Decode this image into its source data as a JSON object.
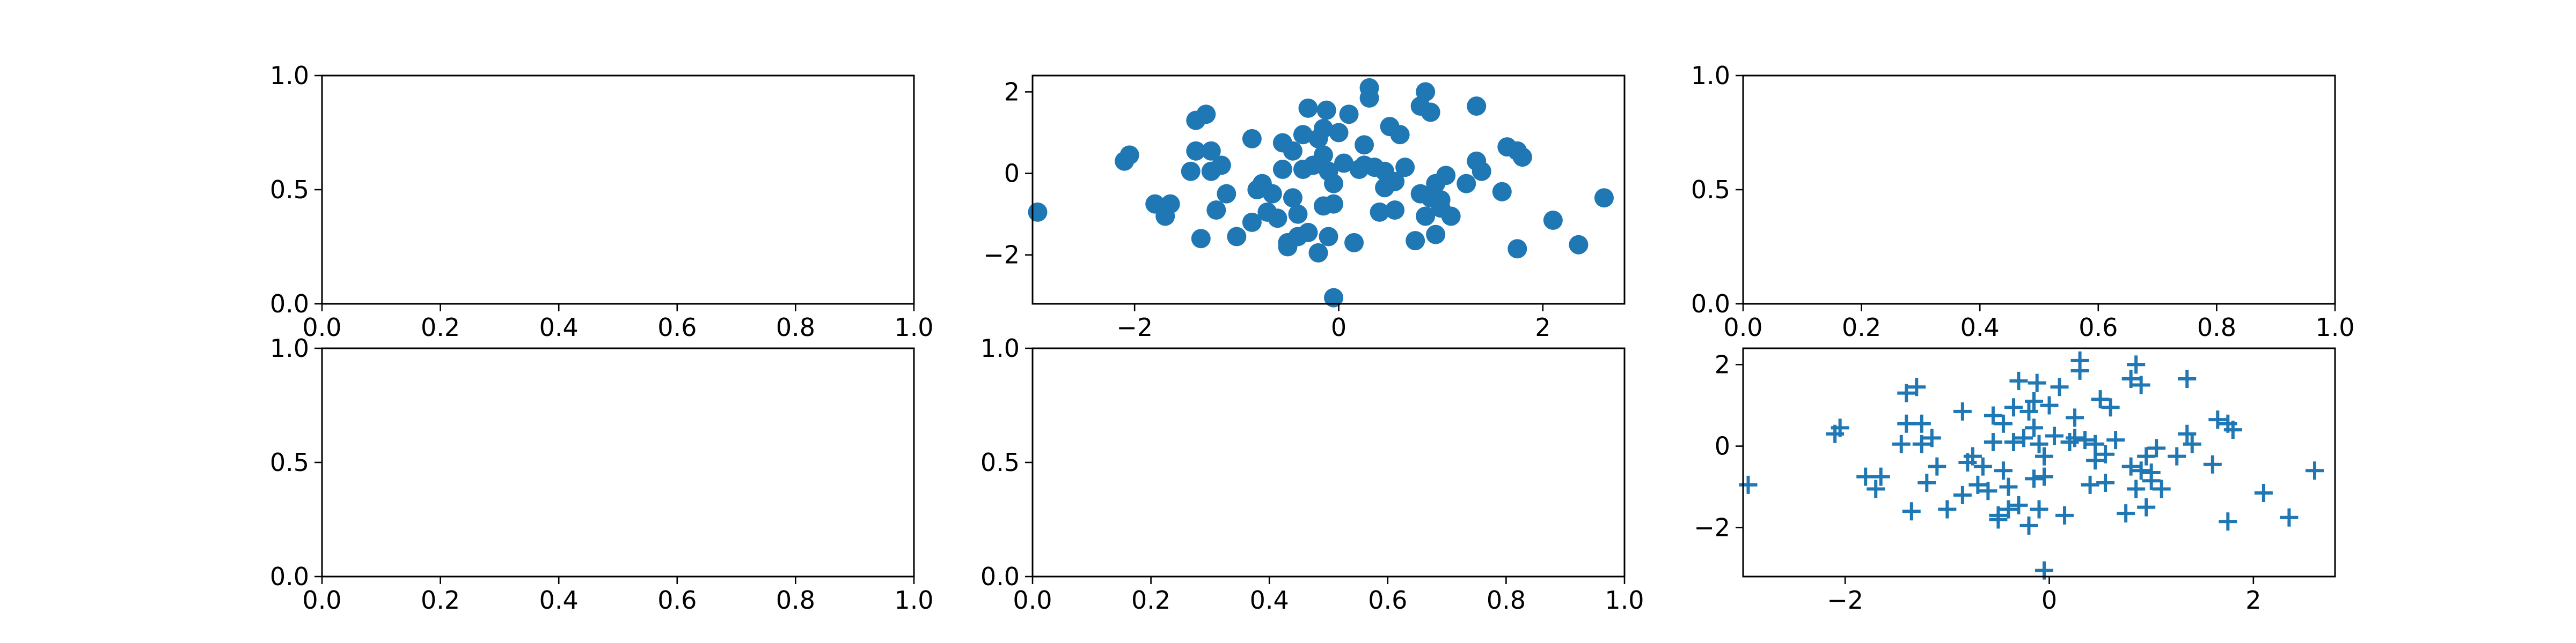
{
  "figure": {
    "background": "#ffffff",
    "accent": "#1f77b4"
  },
  "chart_data": [
    {
      "panel": "row1-col1",
      "type": "empty",
      "xlim": [
        0,
        1
      ],
      "ylim": [
        0,
        1
      ],
      "xticks": [
        0,
        0.2,
        0.4,
        0.6,
        0.8,
        1
      ],
      "yticks": [
        0,
        0.5,
        1
      ],
      "xtick_labels": [
        "0.0",
        "0.2",
        "0.4",
        "0.6",
        "0.8",
        "1.0"
      ],
      "ytick_labels": [
        "0.0",
        "0.5",
        "1.0"
      ],
      "grid": false
    },
    {
      "panel": "row1-col2",
      "type": "scatter",
      "marker": "circle",
      "color": "#1f77b4",
      "xlim": [
        -3.0,
        2.8
      ],
      "ylim": [
        -3.2,
        2.4
      ],
      "xticks": [
        -2,
        0,
        2
      ],
      "yticks": [
        -2,
        0,
        2
      ],
      "xtick_labels": [
        "−2",
        "0",
        "2"
      ],
      "ytick_labels": [
        "−2",
        "0",
        "2"
      ],
      "grid": false,
      "points": [
        [
          -2.95,
          -0.95
        ],
        [
          -2.1,
          0.3
        ],
        [
          -2.05,
          0.45
        ],
        [
          -1.8,
          -0.75
        ],
        [
          -1.7,
          -1.05
        ],
        [
          -1.65,
          -0.75
        ],
        [
          -1.45,
          0.05
        ],
        [
          -1.4,
          1.3
        ],
        [
          -1.4,
          0.55
        ],
        [
          -1.35,
          -1.6
        ],
        [
          -1.3,
          1.45
        ],
        [
          -1.25,
          0.55
        ],
        [
          -1.25,
          0.05
        ],
        [
          -1.2,
          -0.9
        ],
        [
          -1.15,
          0.2
        ],
        [
          -1.1,
          -0.5
        ],
        [
          -1.0,
          -1.55
        ],
        [
          -0.85,
          0.85
        ],
        [
          -0.85,
          -1.2
        ],
        [
          -0.8,
          -0.4
        ],
        [
          -0.75,
          -0.25
        ],
        [
          -0.7,
          -0.95
        ],
        [
          -0.65,
          -0.5
        ],
        [
          -0.6,
          -1.1
        ],
        [
          -0.55,
          0.75
        ],
        [
          -0.55,
          0.1
        ],
        [
          -0.5,
          -1.7
        ],
        [
          -0.5,
          -1.8
        ],
        [
          -0.45,
          -0.6
        ],
        [
          -0.45,
          0.55
        ],
        [
          -0.4,
          -1.55
        ],
        [
          -0.4,
          -1.0
        ],
        [
          -0.35,
          0.1
        ],
        [
          -0.35,
          0.95
        ],
        [
          -0.3,
          1.6
        ],
        [
          -0.3,
          -1.45
        ],
        [
          -0.25,
          0.2
        ],
        [
          -0.2,
          -1.95
        ],
        [
          -0.2,
          0.85
        ],
        [
          -0.15,
          1.1
        ],
        [
          -0.15,
          0.45
        ],
        [
          -0.15,
          -0.8
        ],
        [
          -0.12,
          1.55
        ],
        [
          -0.1,
          0.05
        ],
        [
          -0.1,
          -1.55
        ],
        [
          -0.05,
          -0.75
        ],
        [
          -0.05,
          -0.25
        ],
        [
          -0.05,
          -3.05
        ],
        [
          0.0,
          1.0
        ],
        [
          0.05,
          0.25
        ],
        [
          0.1,
          1.45
        ],
        [
          0.15,
          -1.7
        ],
        [
          0.2,
          0.1
        ],
        [
          0.25,
          0.2
        ],
        [
          0.25,
          0.7
        ],
        [
          0.3,
          2.1
        ],
        [
          0.3,
          1.85
        ],
        [
          0.35,
          0.15
        ],
        [
          0.4,
          -0.95
        ],
        [
          0.45,
          -0.35
        ],
        [
          0.45,
          0.05
        ],
        [
          0.5,
          1.15
        ],
        [
          0.55,
          -0.2
        ],
        [
          0.55,
          -0.9
        ],
        [
          0.6,
          0.95
        ],
        [
          0.65,
          0.15
        ],
        [
          0.75,
          -1.65
        ],
        [
          0.8,
          1.65
        ],
        [
          0.8,
          -0.5
        ],
        [
          0.85,
          2.0
        ],
        [
          0.85,
          -1.05
        ],
        [
          0.9,
          1.5
        ],
        [
          0.9,
          -0.6
        ],
        [
          0.95,
          -0.25
        ],
        [
          0.95,
          -1.5
        ],
        [
          1.0,
          -0.65
        ],
        [
          1.0,
          -0.85
        ],
        [
          1.05,
          -0.05
        ],
        [
          1.1,
          -1.05
        ],
        [
          1.25,
          -0.25
        ],
        [
          1.35,
          1.65
        ],
        [
          1.35,
          0.3
        ],
        [
          1.4,
          0.05
        ],
        [
          1.6,
          -0.45
        ],
        [
          1.65,
          0.65
        ],
        [
          1.75,
          0.55
        ],
        [
          1.75,
          -1.85
        ],
        [
          1.8,
          0.4
        ],
        [
          2.1,
          -1.15
        ],
        [
          2.35,
          -1.75
        ],
        [
          2.6,
          -0.6
        ]
      ]
    },
    {
      "panel": "row1-col3",
      "type": "empty",
      "xlim": [
        0,
        1
      ],
      "ylim": [
        0,
        1
      ],
      "xticks": [
        0,
        0.2,
        0.4,
        0.6,
        0.8,
        1
      ],
      "yticks": [
        0,
        0.5,
        1
      ],
      "xtick_labels": [
        "0.0",
        "0.2",
        "0.4",
        "0.6",
        "0.8",
        "1.0"
      ],
      "ytick_labels": [
        "0.0",
        "0.5",
        "1.0"
      ],
      "grid": false
    },
    {
      "panel": "row2-col1",
      "type": "empty",
      "xlim": [
        0,
        1
      ],
      "ylim": [
        0,
        1
      ],
      "xticks": [
        0,
        0.2,
        0.4,
        0.6,
        0.8,
        1
      ],
      "yticks": [
        0,
        0.5,
        1
      ],
      "xtick_labels": [
        "0.0",
        "0.2",
        "0.4",
        "0.6",
        "0.8",
        "1.0"
      ],
      "ytick_labels": [
        "0.0",
        "0.5",
        "1.0"
      ],
      "grid": false
    },
    {
      "panel": "row2-col2",
      "type": "empty",
      "xlim": [
        0,
        1
      ],
      "ylim": [
        0,
        1
      ],
      "xticks": [
        0,
        0.2,
        0.4,
        0.6,
        0.8,
        1
      ],
      "yticks": [
        0,
        0.5,
        1
      ],
      "xtick_labels": [
        "0.0",
        "0.2",
        "0.4",
        "0.6",
        "0.8",
        "1.0"
      ],
      "ytick_labels": [
        "0.0",
        "0.5",
        "1.0"
      ],
      "grid": false
    },
    {
      "panel": "row2-col3",
      "type": "scatter",
      "marker": "plus",
      "color": "#1f77b4",
      "xlim": [
        -3.0,
        2.8
      ],
      "ylim": [
        -3.2,
        2.4
      ],
      "xticks": [
        -2,
        0,
        2
      ],
      "yticks": [
        -2,
        0,
        2
      ],
      "xtick_labels": [
        "−2",
        "0",
        "2"
      ],
      "ytick_labels": [
        "−2",
        "0",
        "2"
      ],
      "grid": false,
      "points": [
        [
          -2.95,
          -0.95
        ],
        [
          -2.1,
          0.3
        ],
        [
          -2.05,
          0.45
        ],
        [
          -1.8,
          -0.75
        ],
        [
          -1.7,
          -1.05
        ],
        [
          -1.65,
          -0.75
        ],
        [
          -1.45,
          0.05
        ],
        [
          -1.4,
          1.3
        ],
        [
          -1.4,
          0.55
        ],
        [
          -1.35,
          -1.6
        ],
        [
          -1.3,
          1.45
        ],
        [
          -1.25,
          0.55
        ],
        [
          -1.25,
          0.05
        ],
        [
          -1.2,
          -0.9
        ],
        [
          -1.15,
          0.2
        ],
        [
          -1.1,
          -0.5
        ],
        [
          -1.0,
          -1.55
        ],
        [
          -0.85,
          0.85
        ],
        [
          -0.85,
          -1.2
        ],
        [
          -0.8,
          -0.4
        ],
        [
          -0.75,
          -0.25
        ],
        [
          -0.7,
          -0.95
        ],
        [
          -0.65,
          -0.5
        ],
        [
          -0.6,
          -1.1
        ],
        [
          -0.55,
          0.75
        ],
        [
          -0.55,
          0.1
        ],
        [
          -0.5,
          -1.7
        ],
        [
          -0.5,
          -1.8
        ],
        [
          -0.45,
          -0.6
        ],
        [
          -0.45,
          0.55
        ],
        [
          -0.4,
          -1.55
        ],
        [
          -0.4,
          -1.0
        ],
        [
          -0.35,
          0.1
        ],
        [
          -0.35,
          0.95
        ],
        [
          -0.3,
          1.6
        ],
        [
          -0.3,
          -1.45
        ],
        [
          -0.25,
          0.2
        ],
        [
          -0.2,
          -1.95
        ],
        [
          -0.2,
          0.85
        ],
        [
          -0.15,
          1.1
        ],
        [
          -0.15,
          0.45
        ],
        [
          -0.15,
          -0.8
        ],
        [
          -0.12,
          1.55
        ],
        [
          -0.1,
          0.05
        ],
        [
          -0.1,
          -1.55
        ],
        [
          -0.05,
          -0.75
        ],
        [
          -0.05,
          -0.25
        ],
        [
          -0.05,
          -3.05
        ],
        [
          0.0,
          1.0
        ],
        [
          0.05,
          0.25
        ],
        [
          0.1,
          1.45
        ],
        [
          0.15,
          -1.7
        ],
        [
          0.2,
          0.1
        ],
        [
          0.25,
          0.2
        ],
        [
          0.25,
          0.7
        ],
        [
          0.3,
          2.1
        ],
        [
          0.3,
          1.85
        ],
        [
          0.35,
          0.15
        ],
        [
          0.4,
          -0.95
        ],
        [
          0.45,
          -0.35
        ],
        [
          0.45,
          0.05
        ],
        [
          0.5,
          1.15
        ],
        [
          0.55,
          -0.2
        ],
        [
          0.55,
          -0.9
        ],
        [
          0.6,
          0.95
        ],
        [
          0.65,
          0.15
        ],
        [
          0.75,
          -1.65
        ],
        [
          0.8,
          1.65
        ],
        [
          0.8,
          -0.5
        ],
        [
          0.85,
          2.0
        ],
        [
          0.85,
          -1.05
        ],
        [
          0.9,
          1.5
        ],
        [
          0.9,
          -0.6
        ],
        [
          0.95,
          -0.25
        ],
        [
          0.95,
          -1.5
        ],
        [
          1.0,
          -0.65
        ],
        [
          1.0,
          -0.85
        ],
        [
          1.05,
          -0.05
        ],
        [
          1.1,
          -1.05
        ],
        [
          1.25,
          -0.25
        ],
        [
          1.35,
          1.65
        ],
        [
          1.35,
          0.3
        ],
        [
          1.4,
          0.05
        ],
        [
          1.6,
          -0.45
        ],
        [
          1.65,
          0.65
        ],
        [
          1.75,
          0.55
        ],
        [
          1.75,
          -1.85
        ],
        [
          1.8,
          0.4
        ],
        [
          2.1,
          -1.15
        ],
        [
          2.35,
          -1.75
        ],
        [
          2.6,
          -0.6
        ]
      ]
    }
  ]
}
